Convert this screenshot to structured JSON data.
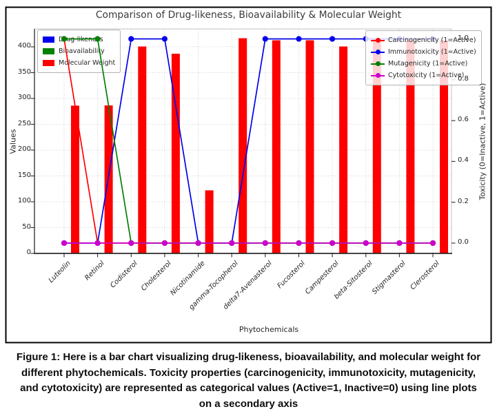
{
  "figure": {
    "caption_lines": [
      "Figure 1: Here is a bar chart visualizing drug-likeness, bioavailability, and molecular weight for",
      "different phytochemicals. Toxicity properties (carcinogenicity, immunotoxicity, mutagenicity,",
      "and cytotoxicity) are represented as categorical values (Active=1, Inactive=0) using line plots",
      "on a secondary axis"
    ]
  },
  "chart_data": {
    "type": "bar+line",
    "title": "Comparison of Drug-likeness, Bioavailability & Molecular Weight",
    "xlabel": "Phytochemicals",
    "ylabel_left": "Values",
    "ylabel_right": "Toxicity (0=Inactive, 1=Active)",
    "categories": [
      "Luteolin",
      "Retinol",
      "Codisterol",
      "Cholesterol",
      "Nicotinamide",
      "gamma-Tocopherol",
      "delta7-Avenasterol",
      "Fucosterol",
      "Campesterol",
      "beta-Sitosterol",
      "Stigmasterol",
      "Clerosterol"
    ],
    "bar_series": [
      {
        "name": "Drug-likeness",
        "color": "#0000ee",
        "values": [
          0,
          0,
          0,
          0,
          0,
          0,
          0,
          0,
          0,
          0,
          0,
          0
        ],
        "note": "bars too small to be visible at the 0-400 axis scale"
      },
      {
        "name": "Bioavailability",
        "color": "#008000",
        "values": [
          0,
          0,
          0,
          0,
          0,
          0,
          0,
          0,
          0,
          0,
          0,
          0
        ],
        "note": "bars too small to be visible at the 0-400 axis scale"
      },
      {
        "name": "Molecular Weight",
        "color": "#ff0000",
        "values": [
          286.2,
          286.5,
          400.7,
          386.7,
          122.1,
          416.7,
          412.7,
          412.7,
          400.7,
          414.7,
          412.7,
          412.7
        ]
      }
    ],
    "line_series": [
      {
        "name": "Carcinogenicity (1=Active)",
        "color": "#ff0000",
        "values": [
          1,
          0,
          0,
          0,
          0,
          0,
          0,
          0,
          0,
          0,
          0,
          0
        ]
      },
      {
        "name": "Immunotoxicity (1=Active)",
        "color": "#0000ee",
        "values": [
          0,
          0,
          1,
          1,
          0,
          0,
          1,
          1,
          1,
          1,
          1,
          1
        ]
      },
      {
        "name": "Mutagenicity (1=Active)",
        "color": "#008000",
        "values": [
          1,
          1,
          0,
          0,
          0,
          0,
          0,
          0,
          0,
          0,
          0,
          0
        ]
      },
      {
        "name": "Cytotoxicity (1=Active)",
        "color": "#cc00cc",
        "values": [
          0,
          0,
          0,
          0,
          0,
          0,
          0,
          0,
          0,
          0,
          0,
          0
        ]
      }
    ],
    "axes": {
      "left": {
        "ticks": [
          0,
          50,
          100,
          150,
          200,
          250,
          300,
          350,
          400
        ],
        "range": [
          0,
          435
        ]
      },
      "right": {
        "ticks": [
          "0.0",
          "0.2",
          "0.4",
          "0.6",
          "0.8",
          "1.0"
        ],
        "range": [
          -0.05,
          1.05
        ]
      },
      "grid": "dotted",
      "legend_left_position": "upper left",
      "legend_right_position": "upper right"
    }
  }
}
